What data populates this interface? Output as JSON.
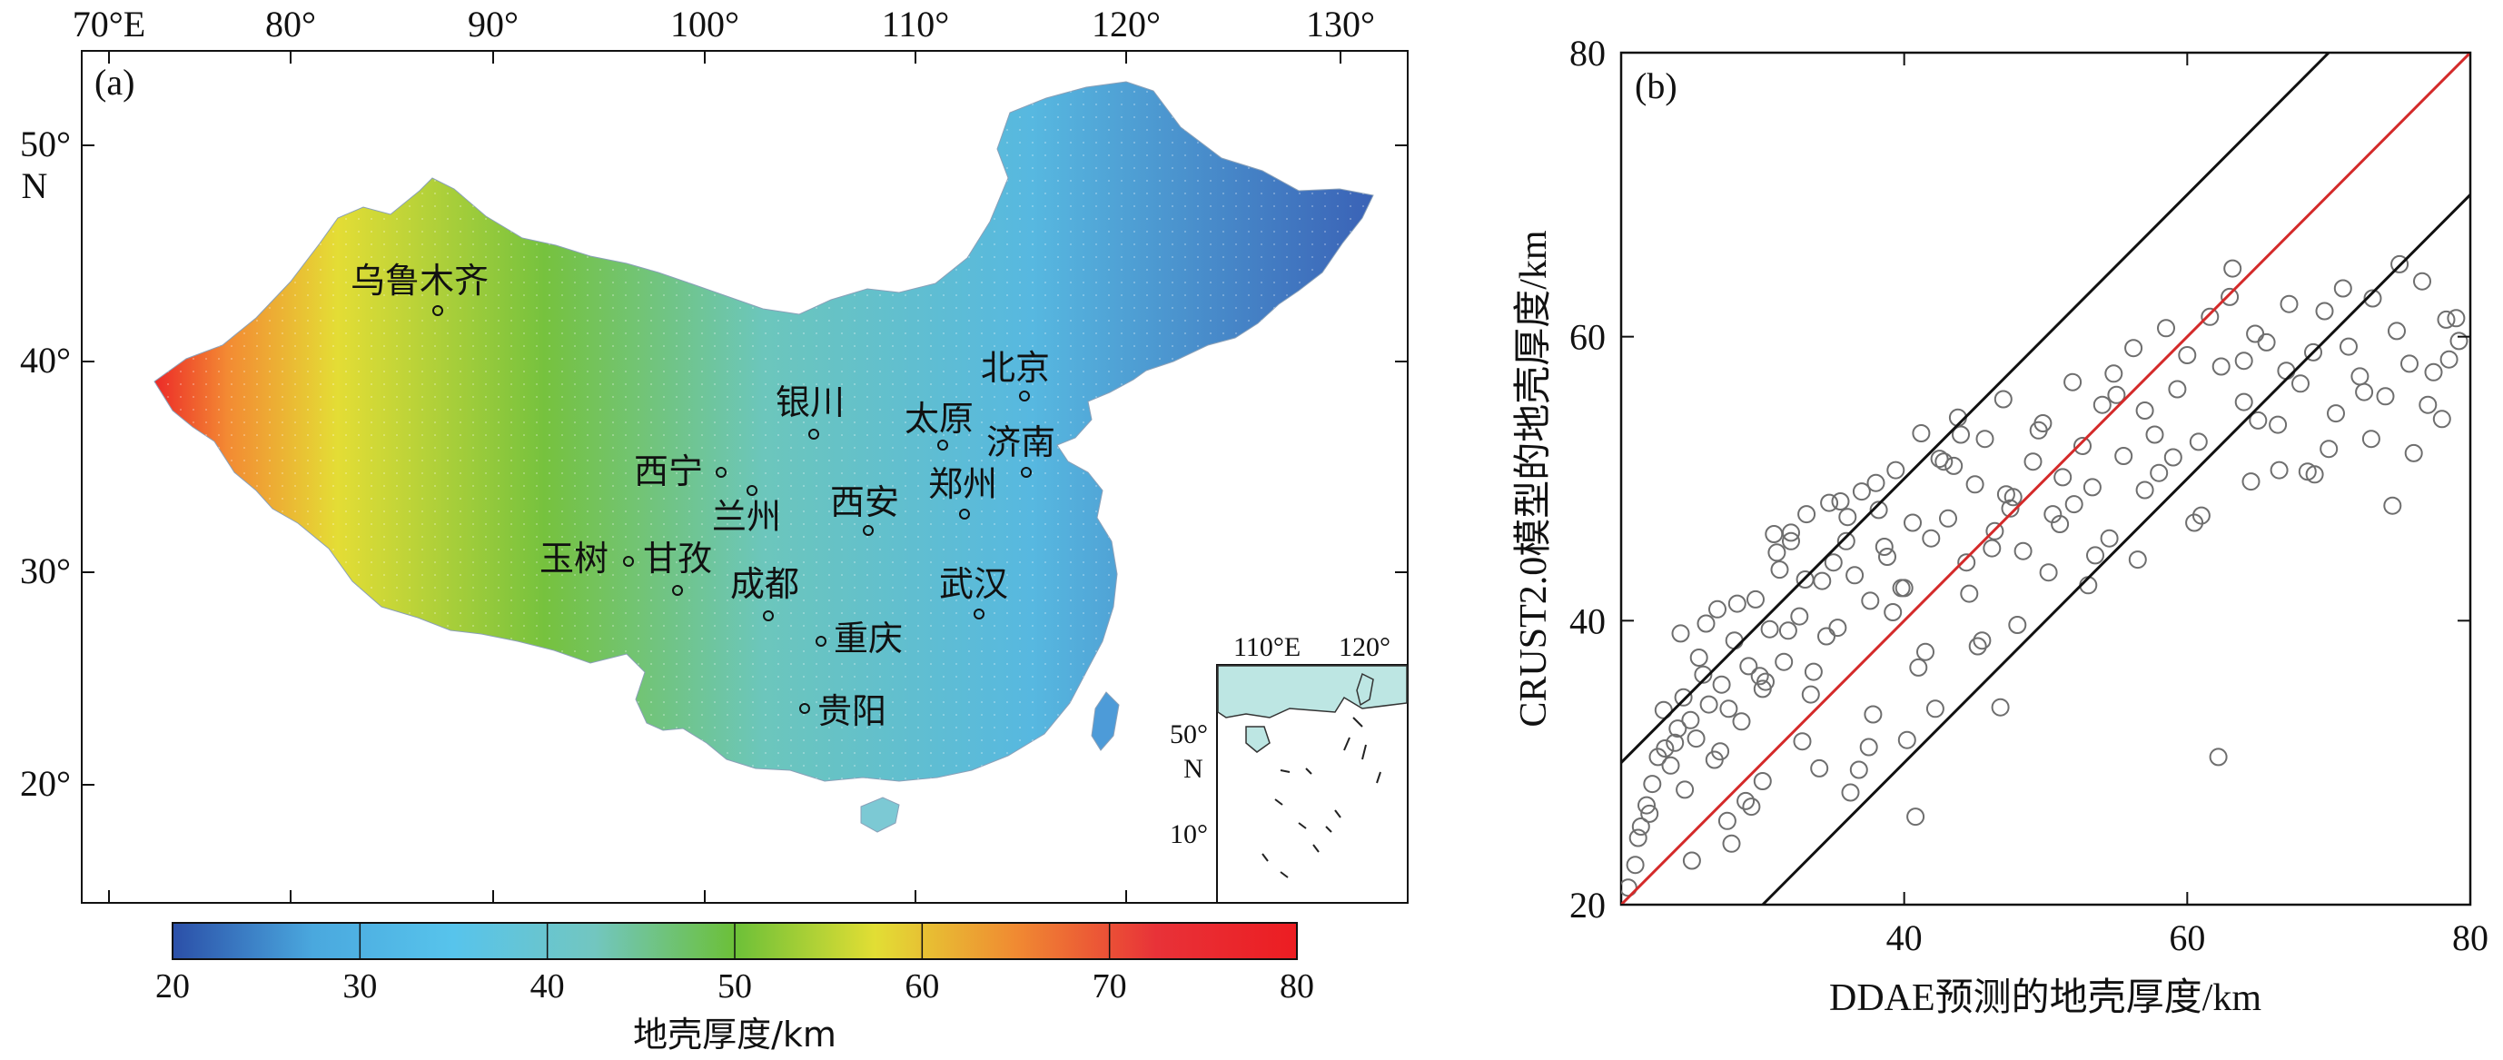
{
  "panel_a": {
    "label": "(a)",
    "top_ticks": [
      "70°E",
      "80°",
      "90°",
      "100°",
      "110°",
      "120°",
      "130°"
    ],
    "left_ticks": [
      "50°",
      "N",
      "40°",
      "30°",
      "20°"
    ],
    "cities": [
      "乌鲁木齐",
      "北京",
      "银川",
      "太原",
      "济南",
      "西宁",
      "郑州",
      "西安",
      "兰州",
      "玉树",
      "甘孜",
      "成都",
      "武汉",
      "重庆",
      "贵阳"
    ],
    "inset": {
      "top_ticks": [
        "110°E",
        "120°"
      ],
      "left_ticks": [
        "50°",
        "N",
        "10°"
      ]
    },
    "colorbar": {
      "ticks": [
        "20",
        "30",
        "40",
        "50",
        "60",
        "70",
        "80"
      ],
      "label": "地壳厚度/km",
      "colors": [
        "#2b4fa8",
        "#4aa8de",
        "#57c4ec",
        "#72c6c0",
        "#6cc038",
        "#e2de34",
        "#f08a32",
        "#e83238",
        "#ec1d22"
      ]
    }
  },
  "chart_data": {
    "type": "scatter",
    "label": "(b)",
    "xlabel": "DDAE预测的地壳厚度/km",
    "ylabel": "CRUST2.0模型的地壳厚度/km",
    "xlim": [
      20,
      80
    ],
    "ylim": [
      20,
      80
    ],
    "x_ticks": [
      "40",
      "60",
      "80"
    ],
    "y_ticks": [
      "20",
      "40",
      "60",
      "80"
    ],
    "reference_lines": [
      {
        "name": "1:1",
        "color": "#d42a2a",
        "x": [
          20,
          80
        ],
        "y": [
          20,
          80
        ]
      },
      {
        "name": "+10 km",
        "color": "#111111",
        "x": [
          20,
          70
        ],
        "y": [
          30,
          80
        ]
      },
      {
        "name": "-10 km",
        "color": "#111111",
        "x": [
          30,
          80
        ],
        "y": [
          20,
          70
        ]
      }
    ],
    "marker_color": "#6e6e6e",
    "points_x": [
      20.5,
      21.0,
      21.4,
      21.8,
      22.2,
      22.6,
      23.1,
      23.5,
      24.0,
      24.4,
      24.9,
      25.3,
      25.8,
      26.2,
      26.6,
      27.1,
      27.6,
      28.0,
      28.5,
      29.0,
      29.5,
      30.0,
      30.5,
      31.0,
      31.5,
      32.0,
      32.6,
      33.1,
      33.6,
      34.2,
      34.7,
      35.3,
      35.9,
      36.5,
      37.0,
      37.6,
      38.2,
      38.8,
      39.4,
      40.0,
      40.6,
      41.2,
      41.9,
      42.5,
      43.1,
      43.8,
      44.4,
      45.0,
      45.7,
      46.4,
      47.0,
      47.7,
      48.4,
      49.1,
      49.8,
      50.5,
      51.2,
      51.9,
      52.6,
      53.3,
      54.0,
      54.8,
      55.5,
      56.2,
      57.0,
      57.7,
      58.5,
      59.3,
      60.0,
      60.8,
      61.6,
      62.4,
      63.2,
      64.0,
      64.8,
      65.6,
      66.4,
      67.2,
      68.0,
      68.9,
      69.7,
      70.5,
      71.4,
      72.2,
      73.1,
      74.0,
      74.8,
      75.7,
      76.6,
      77.4,
      78.3,
      79.2,
      22.0,
      23.0,
      24.5,
      25.5,
      27.0,
      28.2,
      29.8,
      31.2,
      32.8,
      34.5,
      36.0,
      37.8,
      39.2,
      41.0,
      42.8,
      44.6,
      46.2,
      48.0,
      49.5,
      51.0,
      53.0,
      55.0,
      57.0,
      59.0,
      61.0,
      63.0,
      65.0,
      67.0,
      69.0,
      71.0,
      73.0,
      75.0,
      77.0,
      79.0,
      25.0,
      27.5,
      30.0,
      32.0,
      34.0,
      35.5,
      37.5,
      39.8,
      41.5,
      43.5,
      45.5,
      47.5,
      52.0,
      58.0,
      62.2,
      64.0,
      66.5,
      70.0,
      74.5,
      78.5,
      26.0,
      28.8,
      30.8,
      33.4,
      36.2,
      38.6,
      40.8,
      44.0,
      46.8,
      50.2,
      54.5,
      60.5,
      68.5,
      76.0,
      21.2,
      23.8,
      26.8,
      29.2,
      31.8,
      35.0,
      38.0,
      42.2,
      47.2,
      56.5,
      72.5,
      24.2,
      27.8,
      30.2,
      33.0,
      36.8,
      40.2,
      45.2,
      53.5,
      64.5,
      78.0
    ],
    "points_y": [
      21.2,
      22.8,
      25.5,
      27.0,
      28.5,
      30.4,
      31.0,
      29.8,
      32.4,
      34.6,
      33.0,
      31.7,
      36.2,
      34.1,
      30.2,
      35.5,
      33.8,
      38.6,
      32.9,
      36.8,
      41.5,
      35.2,
      39.4,
      44.8,
      37.1,
      46.2,
      40.3,
      47.5,
      36.4,
      42.8,
      48.3,
      39.5,
      45.6,
      43.2,
      49.1,
      41.4,
      47.8,
      44.5,
      50.6,
      42.3,
      46.9,
      53.2,
      45.8,
      51.4,
      47.2,
      54.3,
      44.1,
      49.6,
      52.8,
      46.3,
      55.6,
      48.7,
      44.9,
      51.2,
      53.9,
      47.5,
      50.1,
      56.8,
      52.3,
      49.4,
      55.2,
      57.4,
      51.6,
      59.2,
      54.8,
      53.1,
      60.6,
      56.3,
      58.7,
      52.6,
      61.4,
      57.9,
      64.8,
      55.4,
      60.2,
      59.6,
      53.8,
      62.3,
      56.7,
      58.9,
      61.8,
      54.6,
      59.3,
      57.2,
      62.7,
      55.8,
      60.4,
      58.1,
      63.9,
      57.5,
      61.2,
      59.7,
      26.4,
      33.7,
      28.1,
      37.4,
      30.8,
      41.2,
      36.1,
      43.6,
      31.5,
      38.9,
      47.3,
      33.4,
      40.6,
      36.7,
      51.2,
      41.9,
      45.1,
      39.7,
      53.4,
      46.8,
      42.5,
      55.9,
      49.2,
      51.5,
      47.4,
      62.8,
      54.1,
      57.6,
      50.3,
      63.4,
      52.8,
      65.1,
      55.2,
      61.3,
      23.1,
      25.9,
      28.7,
      45.6,
      29.6,
      48.4,
      31.1,
      42.3,
      37.8,
      50.9,
      38.6,
      47.9,
      48.2,
      50.4,
      30.4,
      58.3,
      50.6,
      52.1,
      48.1,
      58.4,
      39.8,
      27.3,
      46.1,
      34.8,
      27.9,
      45.2,
      26.2,
      53.1,
      33.9,
      43.4,
      45.8,
      46.9,
      50.5,
      51.8,
      24.7,
      31.4,
      40.8,
      26.9,
      39.3,
      44.1,
      49.7,
      33.8,
      48.9,
      44.3,
      56.1,
      39.1,
      24.3,
      35.7,
      42.9,
      29.5,
      31.6,
      38.2,
      44.6,
      49.8,
      54.2
    ]
  }
}
